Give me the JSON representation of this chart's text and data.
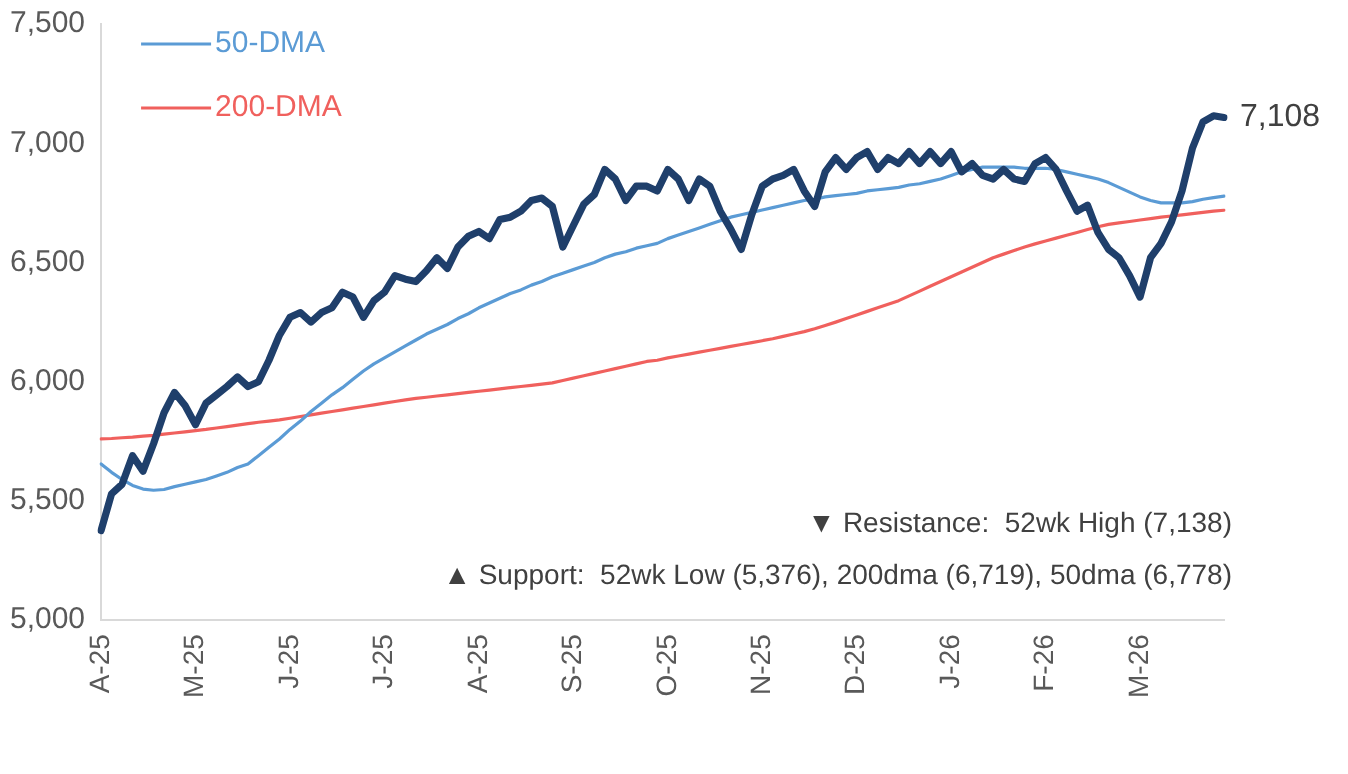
{
  "chart_data": {
    "type": "line",
    "categories": [
      "A-25",
      null,
      null,
      null,
      null,
      null,
      null,
      null,
      null,
      "M-25",
      null,
      null,
      null,
      null,
      null,
      null,
      null,
      null,
      "J-25",
      null,
      null,
      null,
      null,
      null,
      null,
      null,
      null,
      "J-25",
      null,
      null,
      null,
      null,
      null,
      null,
      null,
      null,
      "A-25",
      null,
      null,
      null,
      null,
      null,
      null,
      null,
      null,
      "S-25",
      null,
      null,
      null,
      null,
      null,
      null,
      null,
      null,
      "O-25",
      null,
      null,
      null,
      null,
      null,
      null,
      null,
      null,
      "N-25",
      null,
      null,
      null,
      null,
      null,
      null,
      null,
      null,
      "D-25",
      null,
      null,
      null,
      null,
      null,
      null,
      null,
      null,
      "J-26",
      null,
      null,
      null,
      null,
      null,
      null,
      null,
      null,
      "F-26",
      null,
      null,
      null,
      null,
      null,
      null,
      null,
      null,
      "M-26",
      null,
      null,
      null,
      null,
      null,
      null,
      null,
      null
    ],
    "series": [
      {
        "color": "#1f3f6b",
        "values": [
          5376,
          5530,
          5570,
          5690,
          5625,
          5740,
          5870,
          5955,
          5900,
          5820,
          5910,
          5945,
          5980,
          6020,
          5980,
          6000,
          6090,
          6195,
          6270,
          6290,
          6250,
          6290,
          6310,
          6375,
          6355,
          6270,
          6340,
          6375,
          6445,
          6430,
          6420,
          6465,
          6520,
          6475,
          6565,
          6610,
          6630,
          6600,
          6680,
          6690,
          6715,
          6760,
          6770,
          6735,
          6565,
          6655,
          6745,
          6785,
          6890,
          6850,
          6760,
          6820,
          6820,
          6800,
          6890,
          6850,
          6760,
          6850,
          6820,
          6715,
          6640,
          6555,
          6700,
          6820,
          6850,
          6865,
          6890,
          6800,
          6735,
          6880,
          6940,
          6890,
          6940,
          6965,
          6890,
          6940,
          6915,
          6965,
          6915,
          6965,
          6915,
          6965,
          6880,
          6915,
          6865,
          6850,
          6890,
          6850,
          6840,
          6915,
          6940,
          6890,
          6800,
          6715,
          6740,
          6625,
          6555,
          6520,
          6445,
          6355,
          6520,
          6580,
          6670,
          6800,
          6980,
          7090,
          7115,
          7108
        ]
      },
      {
        "name": "50-DMA",
        "color": "#5b9bd5",
        "values": [
          5655,
          5620,
          5590,
          5565,
          5550,
          5545,
          5548,
          5560,
          5570,
          5580,
          5590,
          5605,
          5620,
          5640,
          5655,
          5690,
          5725,
          5760,
          5800,
          5835,
          5875,
          5910,
          5945,
          5975,
          6010,
          6045,
          6075,
          6100,
          6125,
          6150,
          6175,
          6200,
          6220,
          6240,
          6265,
          6285,
          6310,
          6330,
          6350,
          6370,
          6385,
          6405,
          6420,
          6440,
          6455,
          6470,
          6485,
          6500,
          6520,
          6535,
          6545,
          6560,
          6570,
          6580,
          6600,
          6615,
          6630,
          6645,
          6660,
          6675,
          6690,
          6700,
          6710,
          6720,
          6730,
          6740,
          6750,
          6760,
          6765,
          6775,
          6780,
          6785,
          6790,
          6800,
          6805,
          6810,
          6815,
          6825,
          6830,
          6840,
          6850,
          6865,
          6880,
          6890,
          6900,
          6900,
          6900,
          6900,
          6895,
          6895,
          6895,
          6890,
          6880,
          6870,
          6860,
          6850,
          6835,
          6815,
          6795,
          6775,
          6760,
          6750,
          6750,
          6750,
          6755,
          6765,
          6772,
          6778
        ]
      },
      {
        "name": "200-DMA",
        "color": "#f0605d",
        "values": [
          5760,
          5762,
          5765,
          5768,
          5772,
          5775,
          5780,
          5785,
          5790,
          5795,
          5800,
          5806,
          5812,
          5818,
          5824,
          5830,
          5835,
          5840,
          5847,
          5854,
          5861,
          5868,
          5875,
          5882,
          5889,
          5896,
          5903,
          5910,
          5917,
          5924,
          5930,
          5935,
          5940,
          5945,
          5950,
          5955,
          5960,
          5965,
          5970,
          5975,
          5980,
          5985,
          5990,
          5995,
          6005,
          6015,
          6025,
          6035,
          6045,
          6055,
          6065,
          6075,
          6085,
          6090,
          6100,
          6108,
          6116,
          6124,
          6132,
          6140,
          6148,
          6156,
          6164,
          6172,
          6180,
          6190,
          6200,
          6210,
          6222,
          6236,
          6250,
          6265,
          6280,
          6295,
          6310,
          6325,
          6340,
          6360,
          6380,
          6400,
          6420,
          6440,
          6460,
          6480,
          6500,
          6520,
          6535,
          6550,
          6565,
          6578,
          6590,
          6602,
          6614,
          6626,
          6638,
          6650,
          6660,
          6666,
          6672,
          6678,
          6684,
          6690,
          6695,
          6700,
          6705,
          6710,
          6715,
          6719
        ]
      }
    ],
    "ylim": [
      5000,
      7500
    ],
    "yticks": [
      {
        "value": 5000,
        "label": "5,000"
      },
      {
        "value": 5500,
        "label": "5,500"
      },
      {
        "value": 6000,
        "label": "6,000"
      },
      {
        "value": 6500,
        "label": "6,500"
      },
      {
        "value": 7000,
        "label": "7,000"
      },
      {
        "value": 7500,
        "label": "7,500"
      }
    ],
    "grid": false,
    "legend": "top left",
    "marker": "none",
    "annotations": [
      "7,108",
      "▼ Resistance:  52wk High (7,138)",
      "▲ Support:  52wk Low (5,376), 200dma (6,719), 50dma (6,778)"
    ]
  }
}
